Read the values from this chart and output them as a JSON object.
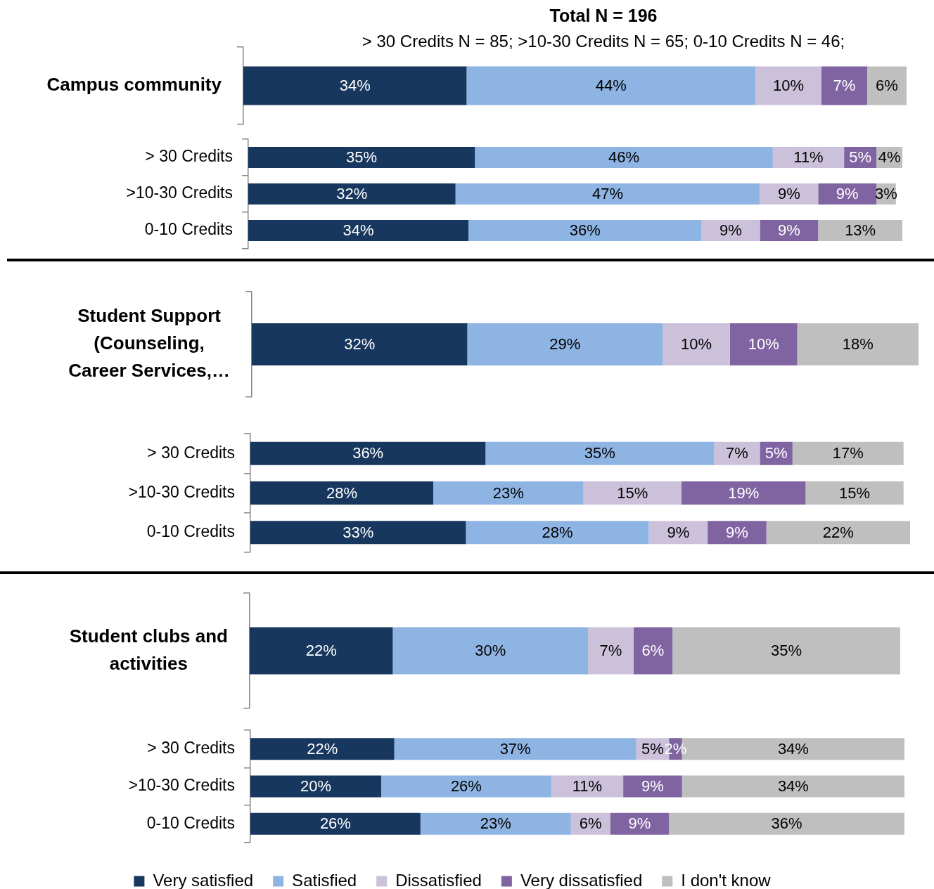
{
  "chart_data": [
    {
      "type": "bar",
      "orientation": "horizontal",
      "stacked": true,
      "title": "Total N = 196",
      "subtitle": "> 30 Credits N = 85; >10-30 Credits N = 65; 0-10 Credits N = 46;",
      "categories": [
        "Campus community"
      ],
      "tick_labels": "y",
      "series": [
        {
          "color": "#17375e",
          "values": [
            34
          ],
          "value_labels": [
            "34%"
          ]
        },
        {
          "color": "#8eb4e3",
          "values": [
            44
          ],
          "value_labels": [
            "44%"
          ]
        },
        {
          "color": "#ccc1da",
          "values": [
            10
          ],
          "value_labels": [
            "10%"
          ]
        },
        {
          "color": "#8064a2",
          "values": [
            7
          ],
          "value_labels": [
            "7%"
          ]
        },
        {
          "color": "#bfbfbf",
          "values": [
            6
          ],
          "value_labels": [
            "6%"
          ]
        }
      ]
    },
    {
      "type": "bar",
      "orientation": "horizontal",
      "stacked": true,
      "categories": [
        "> 30 Credits",
        ">10-30 Credits",
        "0-10 Credits"
      ],
      "tick_labels": "y",
      "series": [
        {
          "color": "#17375e",
          "values": [
            35,
            32,
            34
          ],
          "value_labels": [
            "35%",
            "32%",
            "34%"
          ]
        },
        {
          "color": "#8eb4e3",
          "values": [
            46,
            47,
            36
          ],
          "value_labels": [
            "46%",
            "47%",
            "36%"
          ]
        },
        {
          "color": "#ccc1da",
          "values": [
            11,
            9,
            9
          ],
          "value_labels": [
            "11%",
            "9%",
            "9%"
          ]
        },
        {
          "color": "#8064a2",
          "values": [
            5,
            9,
            9
          ],
          "value_labels": [
            "5%",
            "9%",
            "9%"
          ]
        },
        {
          "color": "#bfbfbf",
          "values": [
            4,
            3,
            13
          ],
          "value_labels": [
            "4%",
            "3%",
            "13%"
          ]
        }
      ]
    },
    {
      "type": "bar",
      "orientation": "horizontal",
      "stacked": true,
      "categories": [
        "Student Support\n(Counseling,\nCareer Services,…"
      ],
      "tick_labels": "y",
      "series": [
        {
          "color": "#17375e",
          "values": [
            32
          ],
          "value_labels": [
            "32%"
          ]
        },
        {
          "color": "#8eb4e3",
          "values": [
            29
          ],
          "value_labels": [
            "29%"
          ]
        },
        {
          "color": "#ccc1da",
          "values": [
            10
          ],
          "value_labels": [
            "10%"
          ]
        },
        {
          "color": "#8064a2",
          "values": [
            10
          ],
          "value_labels": [
            "10%"
          ]
        },
        {
          "color": "#bfbfbf",
          "values": [
            18
          ],
          "value_labels": [
            "18%"
          ]
        }
      ]
    },
    {
      "type": "bar",
      "orientation": "horizontal",
      "stacked": true,
      "categories": [
        "> 30 Credits",
        ">10-30 Credits",
        "0-10 Credits"
      ],
      "tick_labels": "y",
      "series": [
        {
          "color": "#17375e",
          "values": [
            36,
            28,
            33
          ],
          "value_labels": [
            "36%",
            "28%",
            "33%"
          ]
        },
        {
          "color": "#8eb4e3",
          "values": [
            35,
            23,
            28
          ],
          "value_labels": [
            "35%",
            "23%",
            "28%"
          ]
        },
        {
          "color": "#ccc1da",
          "values": [
            7,
            15,
            9
          ],
          "value_labels": [
            "7%",
            "15%",
            "9%"
          ]
        },
        {
          "color": "#8064a2",
          "values": [
            5,
            19,
            9
          ],
          "value_labels": [
            "5%",
            "19%",
            "9%"
          ]
        },
        {
          "color": "#bfbfbf",
          "values": [
            17,
            15,
            22
          ],
          "value_labels": [
            "17%",
            "15%",
            "22%"
          ]
        }
      ]
    },
    {
      "type": "bar",
      "orientation": "horizontal",
      "stacked": true,
      "categories": [
        "Student clubs and\nactivities"
      ],
      "tick_labels": "y",
      "series": [
        {
          "color": "#17375e",
          "values": [
            22
          ],
          "value_labels": [
            "22%"
          ]
        },
        {
          "color": "#8eb4e3",
          "values": [
            30
          ],
          "value_labels": [
            "30%"
          ]
        },
        {
          "color": "#ccc1da",
          "values": [
            7
          ],
          "value_labels": [
            "7%"
          ]
        },
        {
          "color": "#8064a2",
          "values": [
            6
          ],
          "value_labels": [
            "6%"
          ]
        },
        {
          "color": "#bfbfbf",
          "values": [
            35
          ],
          "value_labels": [
            "35%"
          ]
        }
      ]
    },
    {
      "type": "bar",
      "orientation": "horizontal",
      "stacked": true,
      "categories": [
        "> 30 Credits",
        ">10-30 Credits",
        "0-10 Credits"
      ],
      "tick_labels": "y",
      "legend": "bottom",
      "series": [
        {
          "name": "Very satisfied",
          "color": "#17375e",
          "values": [
            22,
            20,
            26
          ],
          "value_labels": [
            "22%",
            "20%",
            "26%"
          ]
        },
        {
          "name": "Satisfied",
          "color": "#8eb4e3",
          "values": [
            37,
            26,
            23
          ],
          "value_labels": [
            "37%",
            "26%",
            "23%"
          ]
        },
        {
          "name": "Dissatisfied",
          "color": "#ccc1da",
          "values": [
            5,
            11,
            6
          ],
          "value_labels": [
            "5%",
            "11%",
            "6%"
          ]
        },
        {
          "name": "Very dissatisfied",
          "color": "#8064a2",
          "values": [
            2,
            9,
            9
          ],
          "value_labels": [
            "2%",
            "9%",
            "9%"
          ]
        },
        {
          "name": "I don't know",
          "color": "#bfbfbf",
          "values": [
            34,
            34,
            36
          ],
          "value_labels": [
            "34%",
            "34%",
            "36%"
          ]
        }
      ]
    }
  ]
}
